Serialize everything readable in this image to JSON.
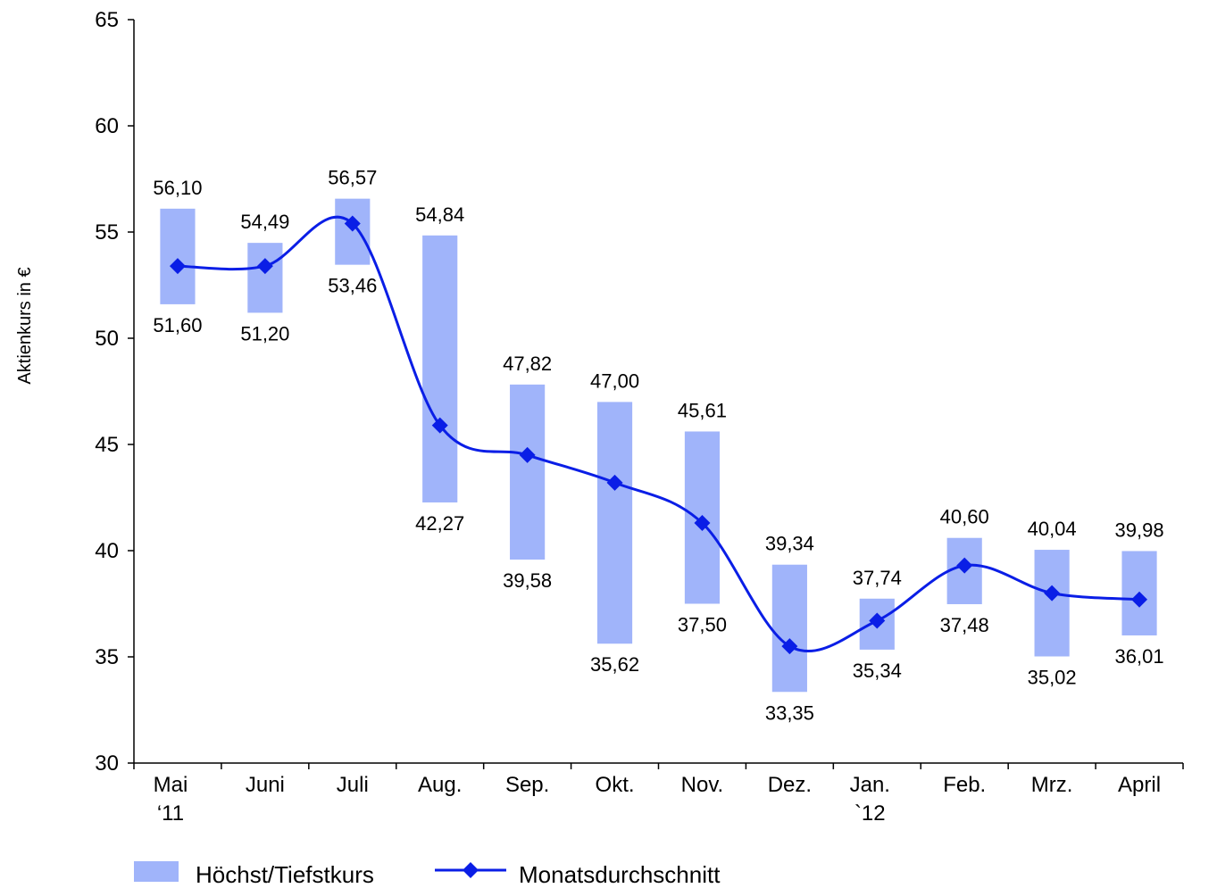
{
  "chart_data": {
    "type": "bar",
    "ylabel": "Aktienkurs in €",
    "xlabel": "",
    "ylim": [
      30,
      65
    ],
    "yticks": [
      "30",
      "35",
      "40",
      "45",
      "50",
      "55",
      "60",
      "65"
    ],
    "grid": false,
    "legend_placement": "bottom-left",
    "categories": [
      [
        "Mai",
        "‘11"
      ],
      [
        "Juni"
      ],
      [
        "Juli"
      ],
      [
        "Aug."
      ],
      [
        "Sep."
      ],
      [
        "Okt."
      ],
      [
        "Nov."
      ],
      [
        "Dez."
      ],
      [
        "Jan.",
        "`12"
      ],
      [
        "Feb."
      ],
      [
        "Mrz."
      ],
      [
        "April"
      ]
    ],
    "series": [
      {
        "name": "Höchst/Tiefstkurs",
        "type": "range-bar",
        "color": "#a0b4fa",
        "high": [
          56.1,
          54.49,
          56.57,
          54.84,
          47.82,
          47.0,
          45.61,
          39.34,
          37.74,
          40.6,
          40.04,
          39.98
        ],
        "low": [
          51.6,
          51.2,
          53.46,
          42.27,
          39.58,
          35.62,
          37.5,
          33.35,
          35.34,
          37.48,
          35.02,
          36.01
        ],
        "high_labels": [
          "56,10",
          "54,49",
          "56,57",
          "54,84",
          "47,82",
          "47,00",
          "45,61",
          "39,34",
          "37,74",
          "40,60",
          "40,04",
          "39,98"
        ],
        "low_labels": [
          "51,60",
          "51,20",
          "53,46",
          "42,27",
          "39,58",
          "35,62",
          "37,50",
          "33,35",
          "35,34",
          "37,48",
          "35,02",
          "36,01"
        ]
      },
      {
        "name": "Monatsdurchschnitt",
        "type": "line",
        "color": "#0a1ee6",
        "marker": "diamond",
        "values": [
          53.4,
          53.4,
          55.4,
          45.9,
          44.5,
          43.2,
          41.3,
          35.5,
          36.7,
          39.3,
          38.0,
          37.7
        ]
      }
    ]
  }
}
